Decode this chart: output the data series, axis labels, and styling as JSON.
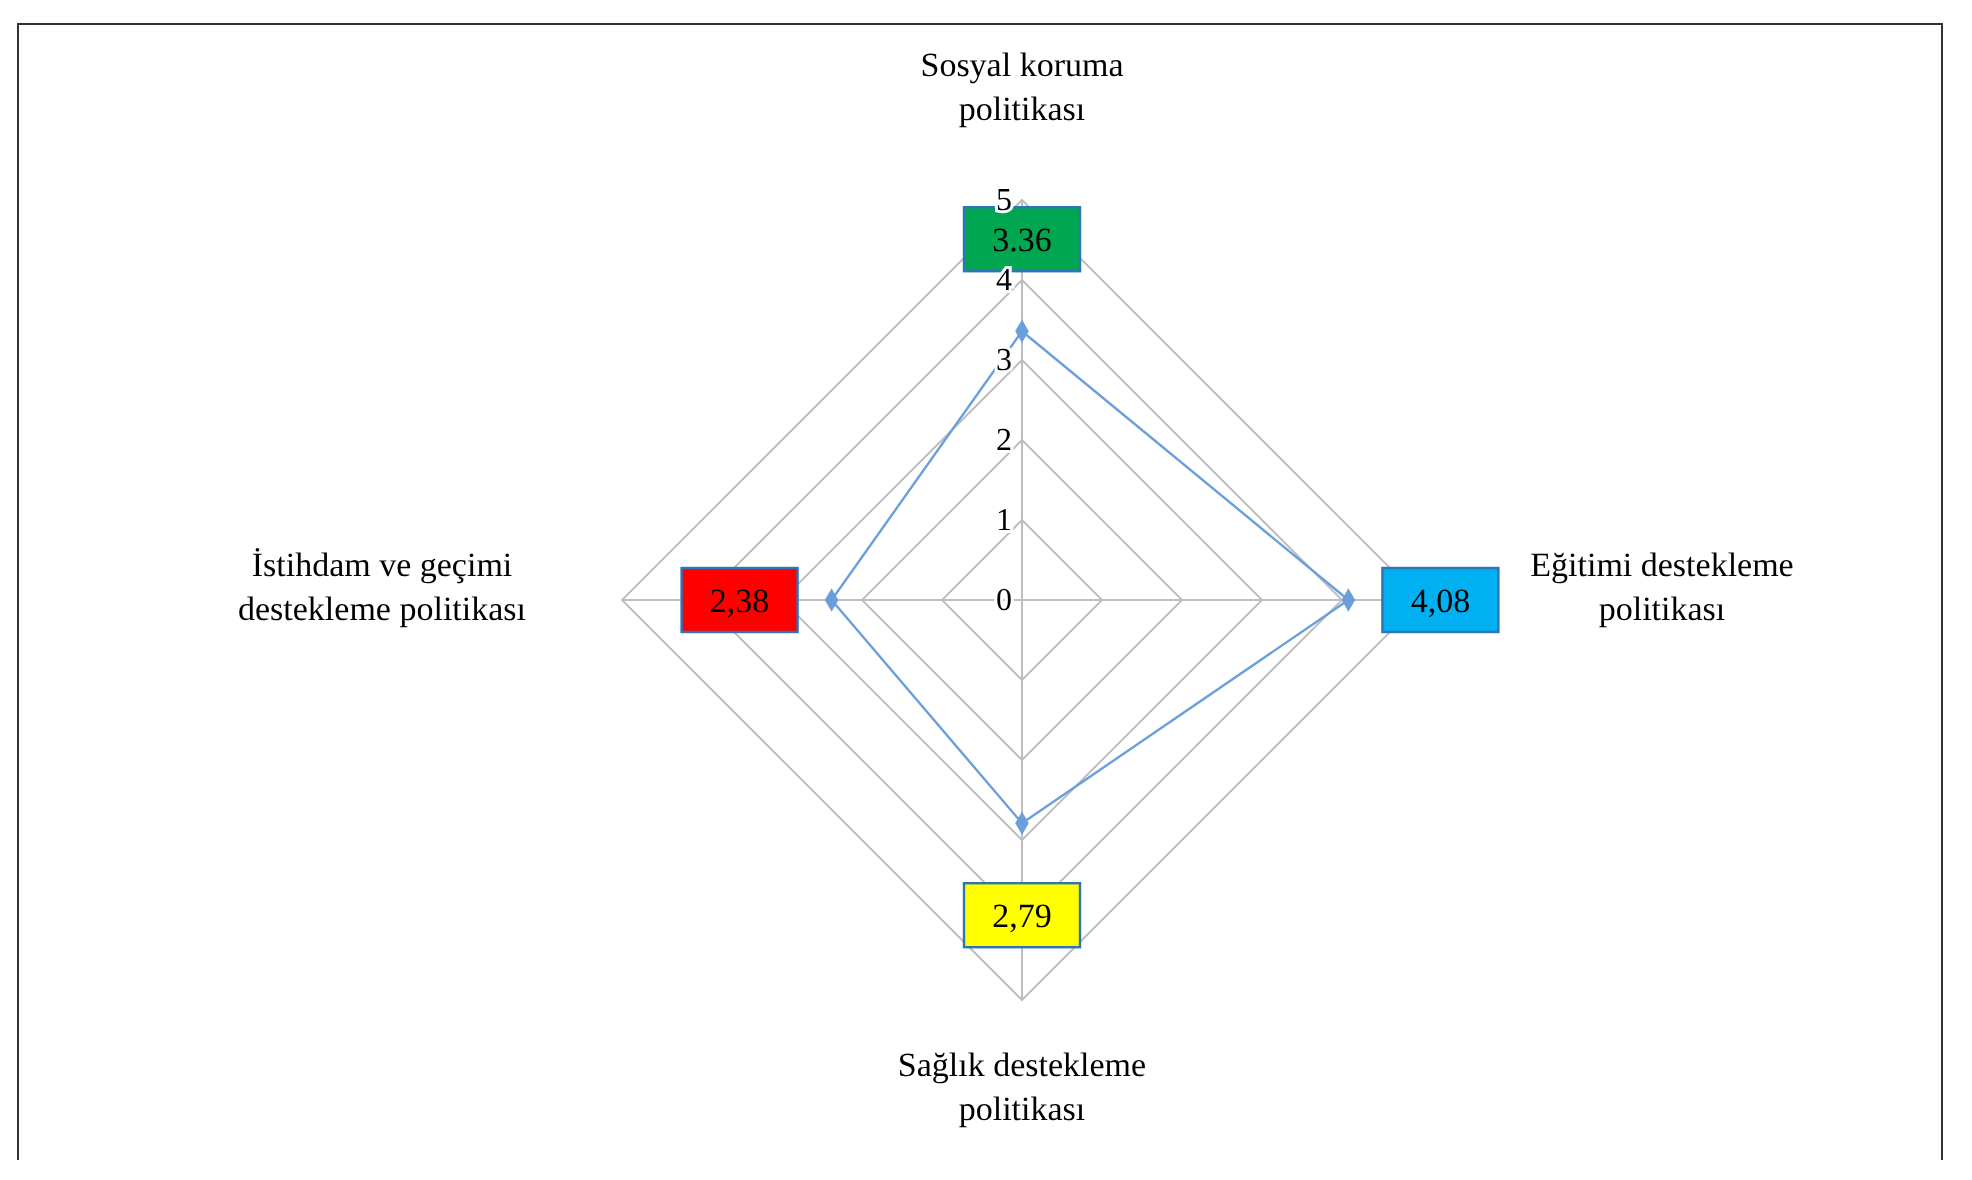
{
  "chart_data": {
    "type": "radar",
    "categories": [
      "Sosyal koruma politikası",
      "Eğitimi destekleme politikası",
      "Sağlık destekleme politikası",
      "İstihdam ve geçimi destekleme politikası"
    ],
    "series": [
      {
        "color": "#6a9fdc",
        "values": [
          3.36,
          4.08,
          2.79,
          2.38
        ],
        "value_labels": [
          "3.36",
          "4,08",
          "2,79",
          "2,38"
        ],
        "colors": [
          "#00a650",
          "#00b0f0",
          "#ffff00",
          "#ff0000"
        ]
      }
    ],
    "ylim": [
      0,
      5
    ],
    "yticks": [
      0,
      1,
      2,
      3,
      4,
      5
    ],
    "grid": true,
    "marker": "diamond",
    "line_style": "solid"
  }
}
